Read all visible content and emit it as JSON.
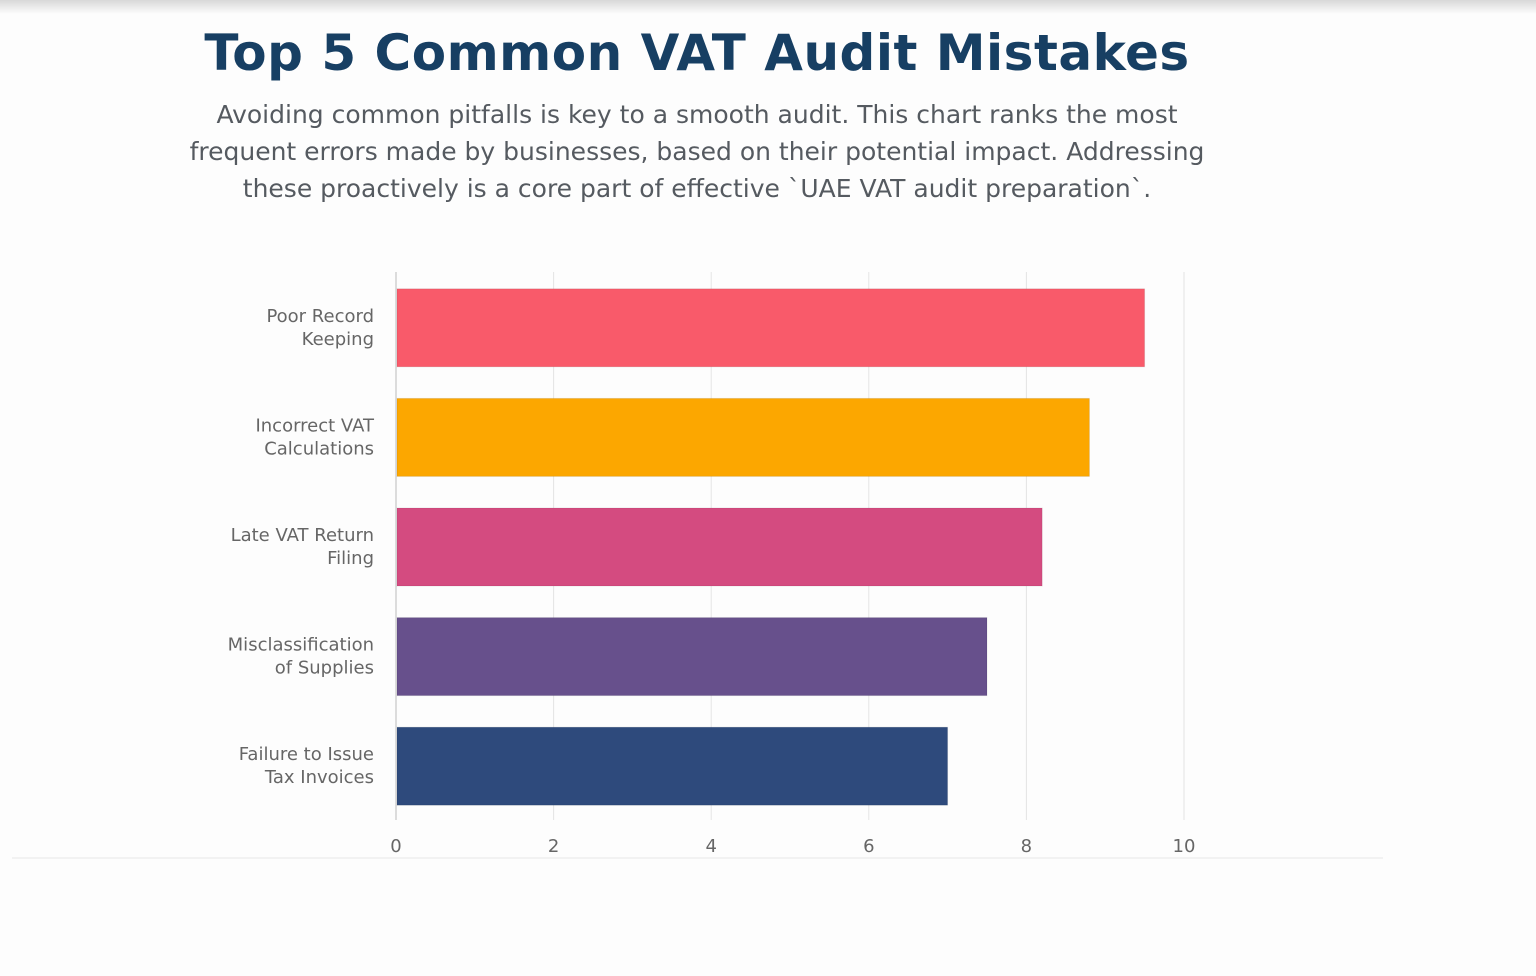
{
  "chart_data": {
    "type": "bar",
    "orientation": "horizontal",
    "title": "Top 5 Common VAT Audit Mistakes",
    "subtitle_lines": [
      "Avoiding common pitfalls is key to a smooth audit. This chart ranks the most",
      "frequent errors made by businesses, based on their potential impact. Addressing",
      "these proactively is a core part of effective `UAE VAT audit preparation`."
    ],
    "categories": [
      [
        "Poor Record",
        "Keeping"
      ],
      [
        "Incorrect VAT",
        "Calculations"
      ],
      [
        "Late VAT Return",
        "Filing"
      ],
      [
        "Misclassification",
        "of Supplies"
      ],
      [
        "Failure to Issue",
        "Tax Invoices"
      ]
    ],
    "values": [
      9.5,
      8.8,
      8.2,
      7.5,
      7.0
    ],
    "colors": [
      "#f95a6a",
      "#fca700",
      "#d44b80",
      "#67508c",
      "#2e4a7c"
    ],
    "xlim": [
      0,
      10
    ],
    "xticks": [
      "0",
      "2",
      "4",
      "6",
      "8",
      "10"
    ],
    "xlabel": "",
    "ylabel": "",
    "grid": true,
    "legend": "none"
  }
}
